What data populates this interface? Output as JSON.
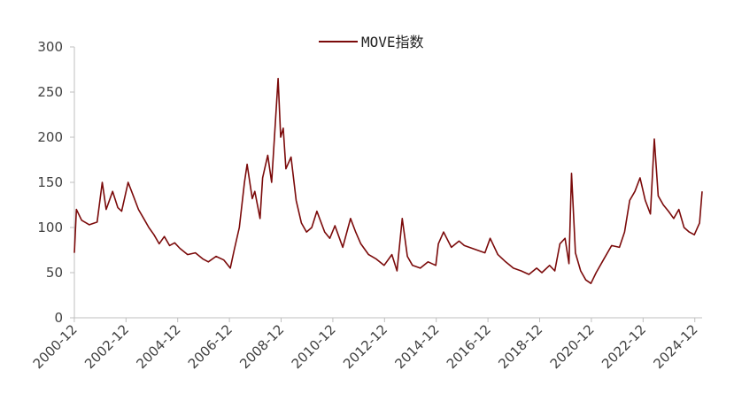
{
  "chart_data": {
    "type": "line",
    "title": "",
    "xlabel": "",
    "ylabel": "",
    "ylim": [
      0,
      300
    ],
    "yticks": [
      "0",
      "50",
      "100",
      "150",
      "200",
      "250",
      "300"
    ],
    "xticks": [
      "2000-12",
      "2002-12",
      "2004-12",
      "2006-12",
      "2008-12",
      "2010-12",
      "2012-12",
      "2014-12",
      "2016-12",
      "2018-12",
      "2020-12",
      "2022-12",
      "2024-12"
    ],
    "xlim": [
      2000.92,
      2025.2
    ],
    "grid": false,
    "legend_position": "top-center",
    "series": [
      {
        "name": "MOVE指数",
        "color": "#7B0A0A",
        "x": [
          2000.92,
          2001.0,
          2001.2,
          2001.5,
          2001.8,
          2002.0,
          2002.15,
          2002.4,
          2002.6,
          2002.75,
          2003.0,
          2003.2,
          2003.4,
          2003.6,
          2003.8,
          2004.0,
          2004.2,
          2004.4,
          2004.6,
          2004.8,
          2005.0,
          2005.3,
          2005.6,
          2005.9,
          2006.1,
          2006.4,
          2006.7,
          2006.95,
          2007.1,
          2007.3,
          2007.5,
          2007.6,
          2007.8,
          2007.9,
          2008.1,
          2008.2,
          2008.4,
          2008.55,
          2008.8,
          2008.9,
          2009.0,
          2009.1,
          2009.3,
          2009.5,
          2009.7,
          2009.9,
          2010.1,
          2010.3,
          2010.6,
          2010.8,
          2011.0,
          2011.3,
          2011.6,
          2011.8,
          2012.0,
          2012.3,
          2012.6,
          2012.9,
          2013.2,
          2013.4,
          2013.6,
          2013.8,
          2014.0,
          2014.3,
          2014.6,
          2014.9,
          2015.0,
          2015.2,
          2015.5,
          2015.8,
          2016.0,
          2016.4,
          2016.8,
          2017.0,
          2017.3,
          2017.6,
          2017.9,
          2018.2,
          2018.5,
          2018.8,
          2019.0,
          2019.3,
          2019.5,
          2019.7,
          2019.9,
          2020.05,
          2020.15,
          2020.3,
          2020.5,
          2020.7,
          2020.9,
          2021.1,
          2021.4,
          2021.7,
          2022.0,
          2022.2,
          2022.4,
          2022.6,
          2022.8,
          2023.0,
          2023.2,
          2023.35,
          2023.5,
          2023.7,
          2023.9,
          2024.1,
          2024.3,
          2024.5,
          2024.7,
          2024.9,
          2025.1,
          2025.2
        ],
        "values": [
          72,
          120,
          108,
          103,
          106,
          150,
          120,
          140,
          122,
          118,
          150,
          135,
          120,
          110,
          100,
          92,
          82,
          90,
          80,
          83,
          77,
          70,
          72,
          65,
          62,
          68,
          64,
          55,
          75,
          100,
          150,
          170,
          132,
          140,
          110,
          155,
          180,
          150,
          265,
          200,
          210,
          165,
          178,
          130,
          105,
          95,
          100,
          118,
          95,
          88,
          102,
          78,
          110,
          95,
          82,
          70,
          65,
          58,
          70,
          52,
          110,
          68,
          58,
          55,
          62,
          58,
          82,
          95,
          78,
          85,
          80,
          76,
          72,
          88,
          70,
          62,
          55,
          52,
          48,
          55,
          50,
          58,
          52,
          82,
          88,
          60,
          160,
          72,
          52,
          42,
          38,
          50,
          65,
          80,
          78,
          95,
          130,
          140,
          155,
          130,
          115,
          198,
          135,
          125,
          118,
          110,
          120,
          100,
          95,
          92,
          105,
          140
        ]
      }
    ]
  }
}
